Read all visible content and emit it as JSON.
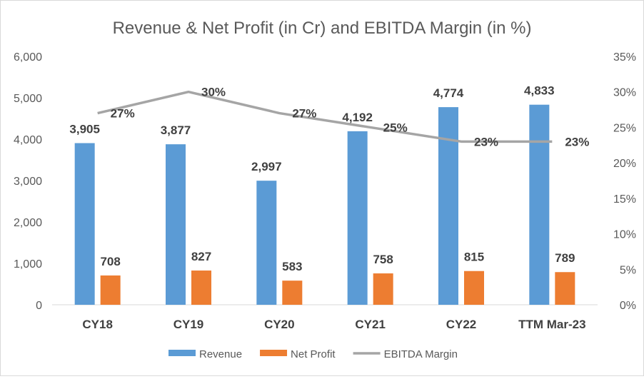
{
  "chart_data": {
    "type": "bar",
    "title": "Revenue & Net Profit (in Cr) and EBITDA Margin (in %)",
    "categories": [
      "CY18",
      "CY19",
      "CY20",
      "CY21",
      "CY22",
      "TTM Mar-23"
    ],
    "y_left": {
      "min": 0,
      "max": 6000,
      "step": 1000,
      "ticks": [
        "0",
        "1,000",
        "2,000",
        "3,000",
        "4,000",
        "5,000",
        "6,000"
      ]
    },
    "y_right": {
      "min": 0,
      "max": 35,
      "step": 5,
      "ticks": [
        "0%",
        "5%",
        "10%",
        "15%",
        "20%",
        "25%",
        "30%",
        "35%"
      ]
    },
    "grid": false,
    "legend_position": "bottom",
    "series": [
      {
        "name": "Revenue",
        "type": "bar",
        "axis": "left",
        "color": "#5b9bd5",
        "values": [
          3905,
          3877,
          2997,
          4192,
          4774,
          4833
        ],
        "labels": [
          "3,905",
          "3,877",
          "2,997",
          "4,192",
          "4,774",
          "4,833"
        ]
      },
      {
        "name": "Net Profit",
        "type": "bar",
        "axis": "left",
        "color": "#ed7d31",
        "values": [
          708,
          827,
          583,
          758,
          815,
          789
        ],
        "labels": [
          "708",
          "827",
          "583",
          "758",
          "815",
          "789"
        ]
      },
      {
        "name": "EBITDA Margin",
        "type": "line",
        "axis": "right",
        "color": "#a5a5a5",
        "values": [
          27,
          30,
          27,
          25,
          23,
          23
        ],
        "labels": [
          "27%",
          "30%",
          "27%",
          "25%",
          "23%",
          "23%"
        ]
      }
    ]
  }
}
